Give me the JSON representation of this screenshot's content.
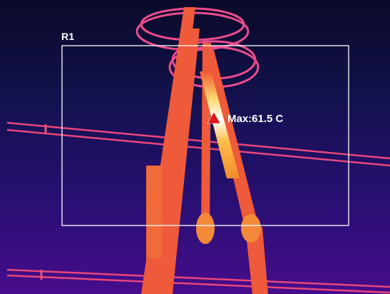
{
  "region": {
    "label": "R1"
  },
  "measurement": {
    "text": "Max:61.5 C",
    "value": 61.5,
    "unit": "C"
  },
  "colors": {
    "palette": "ironbow",
    "background_top": "#0a0a2c",
    "background_bottom": "#3d0a86",
    "hot_object": "#f0602e",
    "hottest": "#ffffff",
    "marker": "#e0141c",
    "roi_box": "#ffffff"
  }
}
